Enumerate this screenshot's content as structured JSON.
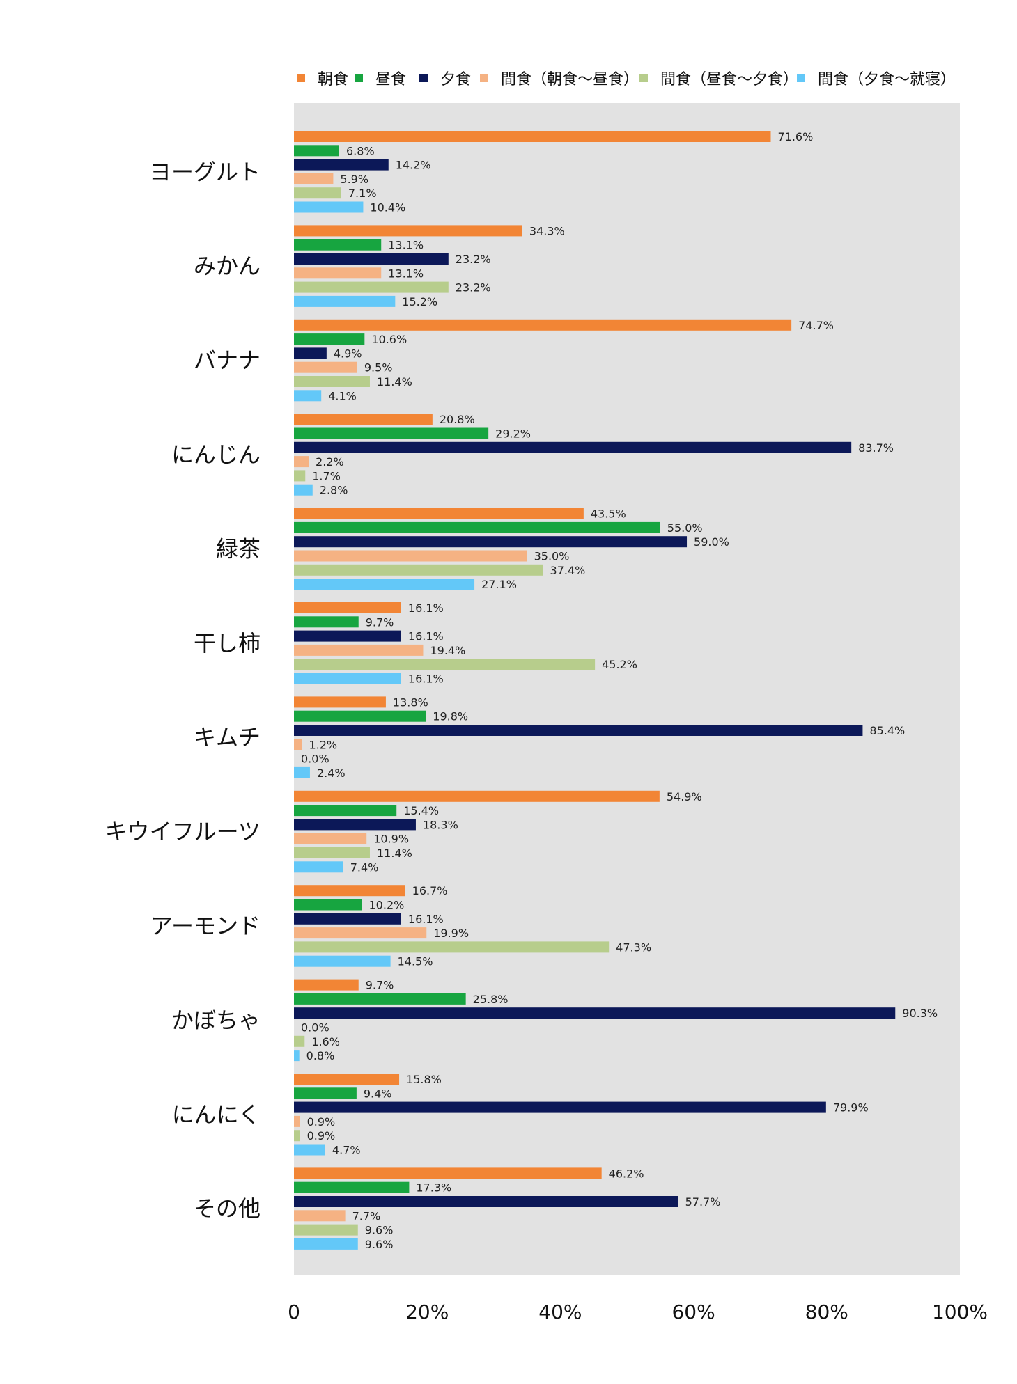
{
  "chart_data": {
    "type": "bar",
    "orientation": "horizontal",
    "categories": [
      "ヨーグルト",
      "みかん",
      "バナナ",
      "にんじん",
      "緑茶",
      "干し柿",
      "キムチ",
      "キウイフルーツ",
      "アーモンド",
      "かぼちゃ",
      "にんにく",
      "その他"
    ],
    "series": [
      {
        "name": "朝食",
        "color": "#F28535",
        "values": [
          71.6,
          34.3,
          74.7,
          20.8,
          43.5,
          16.1,
          13.8,
          54.9,
          16.7,
          9.7,
          15.8,
          46.2
        ]
      },
      {
        "name": "昼食",
        "color": "#17A540",
        "values": [
          6.8,
          13.1,
          10.6,
          29.2,
          55.0,
          9.7,
          19.8,
          15.4,
          10.2,
          25.8,
          9.4,
          17.3
        ]
      },
      {
        "name": "夕食",
        "color": "#0C1858",
        "values": [
          14.2,
          23.2,
          4.9,
          83.7,
          59.0,
          16.1,
          85.4,
          18.3,
          16.1,
          90.3,
          79.9,
          57.7
        ]
      },
      {
        "name": "間食（朝食〜昼食）",
        "color": "#F5B283",
        "values": [
          5.9,
          13.1,
          9.5,
          2.2,
          35.0,
          19.4,
          1.2,
          10.9,
          19.9,
          0.0,
          0.9,
          7.7
        ]
      },
      {
        "name": "間食（昼食〜夕食）",
        "color": "#B7CD8C",
        "values": [
          7.1,
          23.2,
          11.4,
          1.7,
          37.4,
          45.2,
          0.0,
          11.4,
          47.3,
          1.6,
          0.9,
          9.6
        ]
      },
      {
        "name": "間食（夕食〜就寝）",
        "color": "#63C8F8",
        "values": [
          10.4,
          15.2,
          4.1,
          2.8,
          27.1,
          16.1,
          2.4,
          7.4,
          14.5,
          0.8,
          4.7,
          9.6
        ]
      }
    ],
    "data_labels": [
      [
        "71.6%",
        "6.8%",
        "14.2%",
        "5.9%",
        "7.1%",
        "10.4%"
      ],
      [
        "34.3%",
        "13.1%",
        "23.2%",
        "13.1%",
        "23.2%",
        "15.2%"
      ],
      [
        "74.7%",
        "10.6%",
        "4.9%",
        "9.5%",
        "11.4%",
        "4.1%"
      ],
      [
        "20.8%",
        "29.2%",
        "83.7%",
        "2.2%",
        "1.7%",
        "2.8%"
      ],
      [
        "43.5%",
        "55.0%",
        "59.0%",
        "35.0%",
        "37.4%",
        "27.1%"
      ],
      [
        "16.1%",
        "9.7%",
        "16.1%",
        "19.4%",
        "45.2%",
        "16.1%"
      ],
      [
        "13.8%",
        "19.8%",
        "85.4%",
        "1.2%",
        "0.0%",
        "2.4%"
      ],
      [
        "54.9%",
        "15.4%",
        "18.3%",
        "10.9%",
        "11.4%",
        "7.4%"
      ],
      [
        "16.7%",
        "10.2%",
        "16.1%",
        "19.9%",
        "47.3%",
        "14.5%"
      ],
      [
        "9.7%",
        "25.8%",
        "90.3%",
        "0.0%",
        "1.6%",
        "0.8%"
      ],
      [
        "15.8%",
        "9.4%",
        "79.9%",
        "0.9%",
        "0.9%",
        "4.7%"
      ],
      [
        "46.2%",
        "17.3%",
        "57.7%",
        "7.7%",
        "9.6%",
        "9.6%"
      ]
    ],
    "x_ticks": [
      "0",
      "20%",
      "40%",
      "60%",
      "80%",
      "100%"
    ],
    "xlim": [
      0,
      100
    ],
    "legend_position": "top",
    "plot_background": "#E2E2E2",
    "grid": false
  }
}
